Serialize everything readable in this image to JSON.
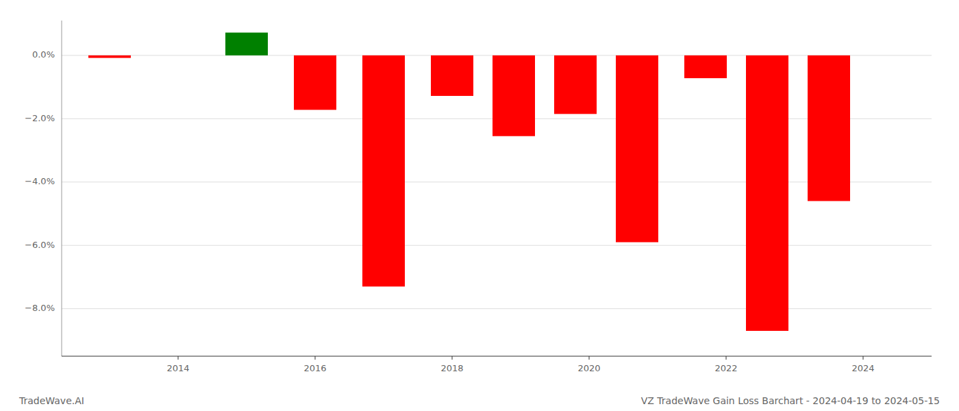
{
  "chart_data": {
    "type": "bar",
    "title": "VZ TradeWave Gain Loss Barchart - 2024-04-19 to 2024-05-15",
    "annotations": [
      "TradeWave.AI"
    ],
    "x": [
      2013,
      2014,
      2015,
      2016,
      2017,
      2018,
      2018.9,
      2019.8,
      2020.7,
      2021.7,
      2022.6,
      2023.5
    ],
    "values": [
      -0.08,
      0.0,
      0.72,
      -1.72,
      -7.3,
      -1.28,
      -2.55,
      -1.85,
      -5.9,
      -0.72,
      -8.7,
      -4.6
    ],
    "colors": [
      "#ff0000",
      "#008000",
      "#008000",
      "#ff0000",
      "#ff0000",
      "#ff0000",
      "#ff0000",
      "#ff0000",
      "#ff0000",
      "#ff0000",
      "#ff0000",
      "#ff0000"
    ],
    "xlim": [
      2012.3,
      2025.0
    ],
    "xticks": [
      2014,
      2016,
      2018,
      2020,
      2022,
      2024
    ],
    "ylim": [
      -9.5,
      1.1
    ],
    "yticks": [
      {
        "value": 0.0,
        "label": "0.0%"
      },
      {
        "value": -2.0,
        "label": "−2.0%"
      },
      {
        "value": -4.0,
        "label": "−4.0%"
      },
      {
        "value": -6.0,
        "label": "−6.0%"
      },
      {
        "value": -8.0,
        "label": "−8.0%"
      }
    ],
    "grid": true
  }
}
